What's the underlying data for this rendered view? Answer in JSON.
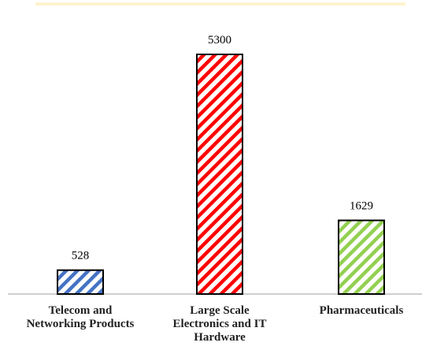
{
  "chart_data": {
    "type": "bar",
    "categories": [
      "Telecom and Networking Products",
      "Large Scale Electronics and IT Hardware",
      "Pharmaceuticals"
    ],
    "values": [
      528,
      5300,
      1629
    ],
    "colors": [
      "#4472c4",
      "#ff0000",
      "#92d050"
    ],
    "pattern": "diagonal-hatch"
  }
}
